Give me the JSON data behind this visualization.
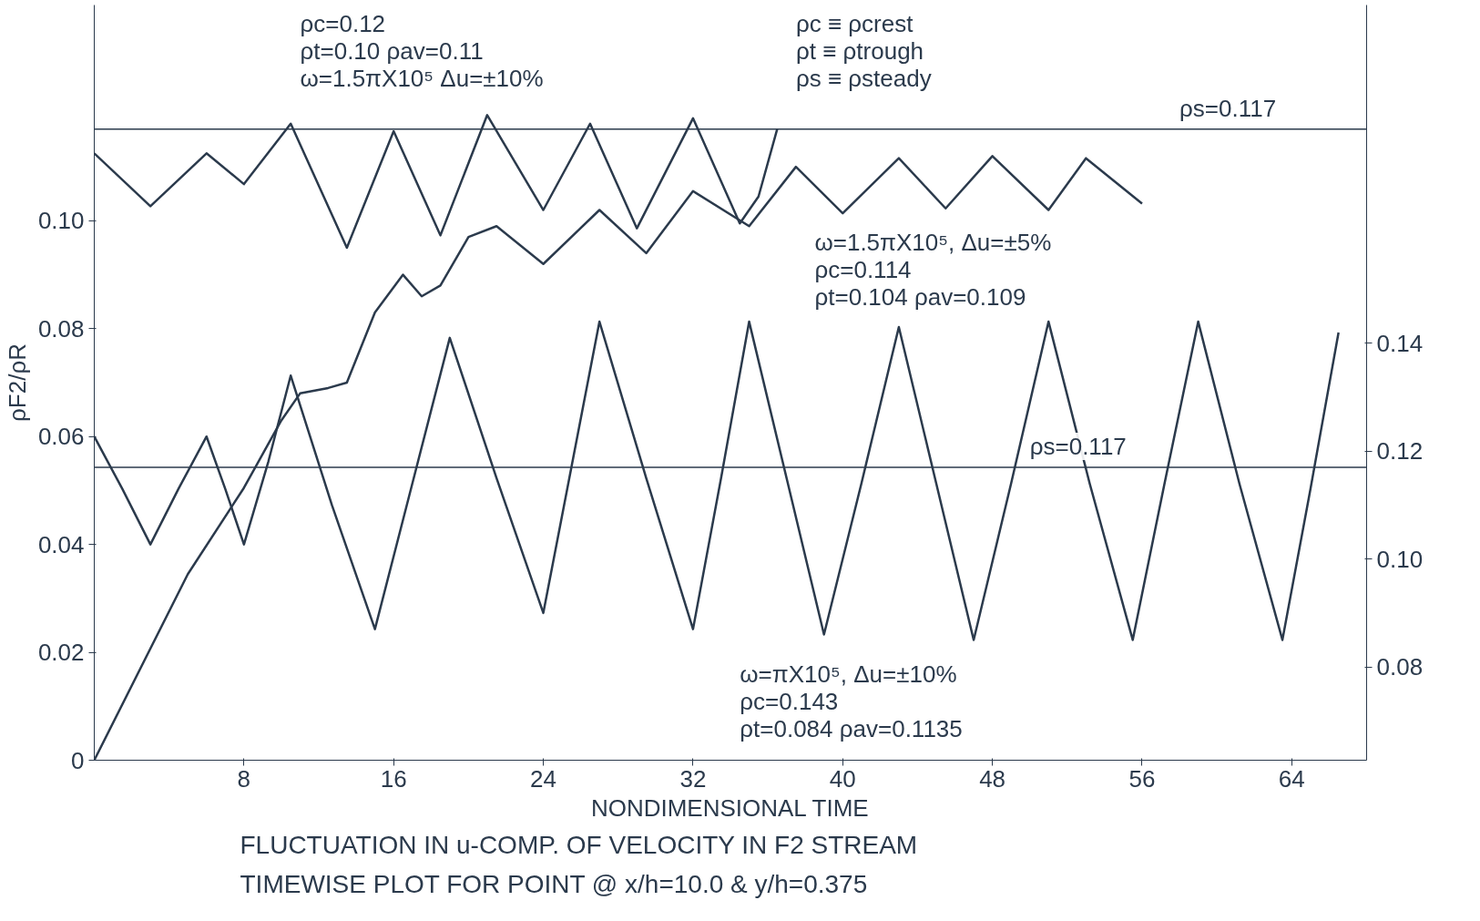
{
  "chart_data": {
    "type": "line",
    "title": "FLUCTUATION IN u-COMP. OF VELOCITY IN F2 STREAM",
    "subtitle": "TIMEWISE PLOT FOR POINT @ x/h=10.0 & y/h=0.375",
    "xlabel": "NONDIMENSIONAL TIME",
    "ylabel": "ρF2/ρR",
    "xlim": [
      0,
      68
    ],
    "xticks": [
      8,
      16,
      24,
      32,
      40,
      48,
      56,
      64
    ],
    "ylim": [
      0,
      0.14
    ],
    "yticks": [
      {
        "value": 0,
        "label": "0"
      },
      {
        "value": 0.02,
        "label": "0.02"
      },
      {
        "value": 0.04,
        "label": "0.04"
      },
      {
        "value": 0.06,
        "label": "0.06"
      },
      {
        "value": 0.08,
        "label": "0.08"
      },
      {
        "value": 0.1,
        "label": "0.10"
      }
    ],
    "y2lim": [
      0.0627,
      0.2027
    ],
    "y2ticks": [
      {
        "value": 0.08,
        "label": "0.08"
      },
      {
        "value": 0.1,
        "label": "0.10"
      },
      {
        "value": 0.12,
        "label": "0.12"
      },
      {
        "value": 0.14,
        "label": "0.14"
      }
    ],
    "grid": false,
    "series": [
      {
        "color": "#2b3a4c",
        "x": [
          0,
          3,
          6,
          8,
          10.5,
          13.5,
          16,
          18.5,
          21,
          24,
          26.5,
          29,
          32,
          34.5,
          35.5,
          36.5
        ],
        "values": [
          0.1125,
          0.1027,
          0.1125,
          0.1068,
          0.118,
          0.095,
          0.1166,
          0.0973,
          0.1196,
          0.102,
          0.118,
          0.0986,
          0.119,
          0.0995,
          0.1045,
          0.117
        ]
      },
      {
        "color": "#2b3a4c",
        "x": [
          0,
          5,
          8,
          10,
          11,
          12.5,
          13.5,
          15,
          16.5,
          17.5,
          18.5,
          20,
          21.5,
          24,
          27,
          29.5,
          32,
          35,
          37.5,
          40,
          43,
          45.5,
          48,
          51,
          53,
          56
        ],
        "values": [
          0,
          0.0345,
          0.0505,
          0.063,
          0.068,
          0.069,
          0.07,
          0.083,
          0.09,
          0.086,
          0.088,
          0.097,
          0.099,
          0.092,
          0.102,
          0.094,
          0.1055,
          0.099,
          0.11,
          0.1014,
          0.1116,
          0.1023,
          0.112,
          0.102,
          0.1116,
          0.1032
        ]
      },
      {
        "color": "#2b3a4c",
        "axis": "y2",
        "x": [
          0,
          1.5,
          3,
          4.5,
          6,
          7,
          8,
          9.3,
          10.5,
          12.7,
          15,
          17,
          19,
          21.5,
          24,
          25.5,
          27,
          29.5,
          32,
          33.5,
          35,
          37,
          39,
          41,
          43,
          45,
          47,
          49,
          51,
          53.2,
          55.5,
          57.2,
          59,
          61.2,
          63.5,
          65,
          66.5
        ],
        "values": [
          0.1227,
          0.113,
          0.1027,
          0.113,
          0.1227,
          0.113,
          0.1027,
          0.118,
          0.134,
          0.11,
          0.087,
          0.114,
          0.141,
          0.115,
          0.09,
          0.117,
          0.144,
          0.115,
          0.087,
          0.115,
          0.144,
          0.115,
          0.086,
          0.114,
          0.143,
          0.114,
          0.085,
          0.114,
          0.144,
          0.114,
          0.085,
          0.114,
          0.144,
          0.114,
          0.085,
          0.113,
          0.142
        ]
      }
    ],
    "ref_lines": [
      {
        "axis": "y",
        "value": 0.117,
        "label": "ρs=0.117"
      },
      {
        "axis": "y2",
        "value": 0.117,
        "label": "ρs=0.117"
      }
    ],
    "annotations": [
      "ρc=0.12\nρt=0.10   ρav=0.11\nω=1.5πX10⁵   Δu=±10%",
      "ρc ≡ ρcrest\nρt ≡ ρtrough\nρs ≡ ρsteady",
      "ω=1.5πX10⁵, Δu=±5%\nρc=0.114\nρt=0.104   ρav=0.109",
      "ω=πX10⁵, Δu=±10%\nρc=0.143\nρt=0.084   ρav=0.1135"
    ]
  }
}
